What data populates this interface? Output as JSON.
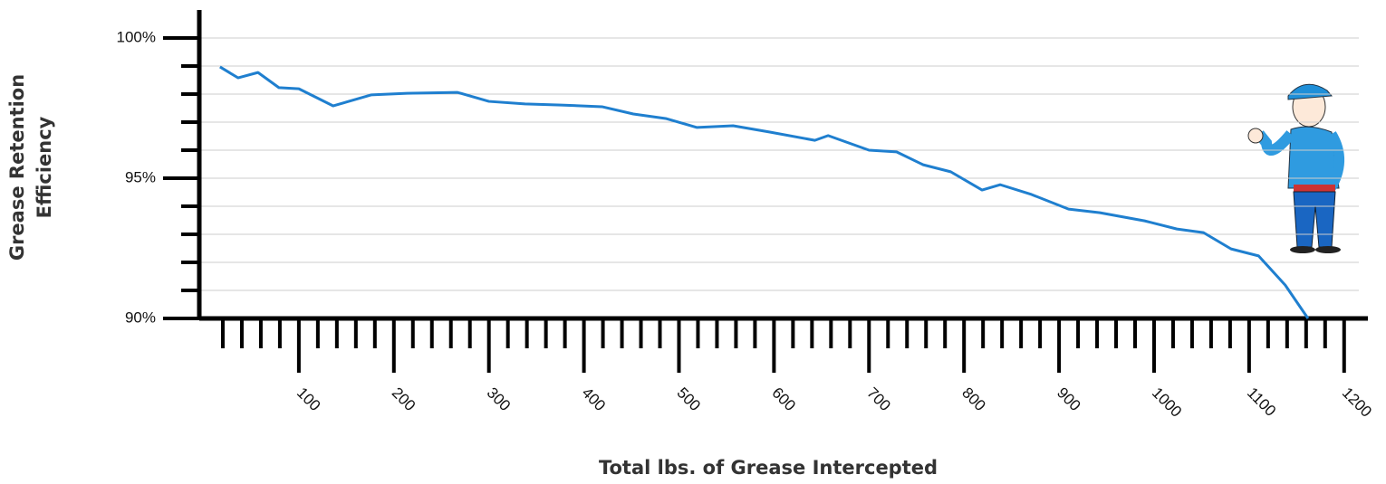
{
  "chart_data": {
    "type": "line",
    "x_label": "Total lbs. of Grease Intercepted",
    "y_label": [
      "Grease Retention",
      "Efficiency"
    ],
    "xlim": [
      0,
      1225
    ],
    "ylim": [
      90,
      101
    ],
    "xticks": [
      100,
      200,
      300,
      400,
      500,
      600,
      700,
      800,
      900,
      1000,
      1100,
      1200
    ],
    "xminorticks": [
      20,
      40,
      60,
      80,
      120,
      140,
      160,
      180,
      220,
      240,
      260,
      280,
      320,
      340,
      360,
      380,
      420,
      440,
      460,
      480,
      520,
      540,
      560,
      580,
      620,
      640,
      660,
      680,
      720,
      740,
      760,
      780,
      820,
      840,
      860,
      880,
      920,
      940,
      960,
      980,
      1020,
      1040,
      1060,
      1080,
      1120,
      1140,
      1160,
      1180
    ],
    "yticks": [
      {
        "value": 90,
        "label": "90%"
      },
      {
        "value": 95,
        "label": "95%"
      },
      {
        "value": 100,
        "label": "100%"
      }
    ],
    "yminorticks": [
      91,
      92,
      93,
      94,
      96,
      97,
      98,
      99
    ],
    "grid": true,
    "series": [
      {
        "color": "#1f7fcf",
        "x": [
          17,
          36,
          57,
          79,
          100,
          136,
          176,
          214,
          267,
          300,
          338,
          376,
          419,
          452,
          486,
          519,
          557,
          595,
          643,
          657,
          700,
          729,
          757,
          786,
          819,
          838,
          871,
          910,
          943,
          990,
          1024,
          1052,
          1081,
          1110,
          1138,
          1162
        ],
        "values": [
          98.97,
          98.58,
          98.77,
          98.23,
          98.19,
          97.58,
          97.97,
          98.03,
          98.06,
          97.74,
          97.65,
          97.61,
          97.55,
          97.29,
          97.13,
          96.81,
          96.87,
          96.65,
          96.35,
          96.52,
          96.0,
          95.94,
          95.48,
          95.23,
          94.58,
          94.77,
          94.42,
          93.9,
          93.77,
          93.48,
          93.19,
          93.06,
          92.48,
          92.23,
          91.19,
          90.0
        ]
      }
    ]
  }
}
